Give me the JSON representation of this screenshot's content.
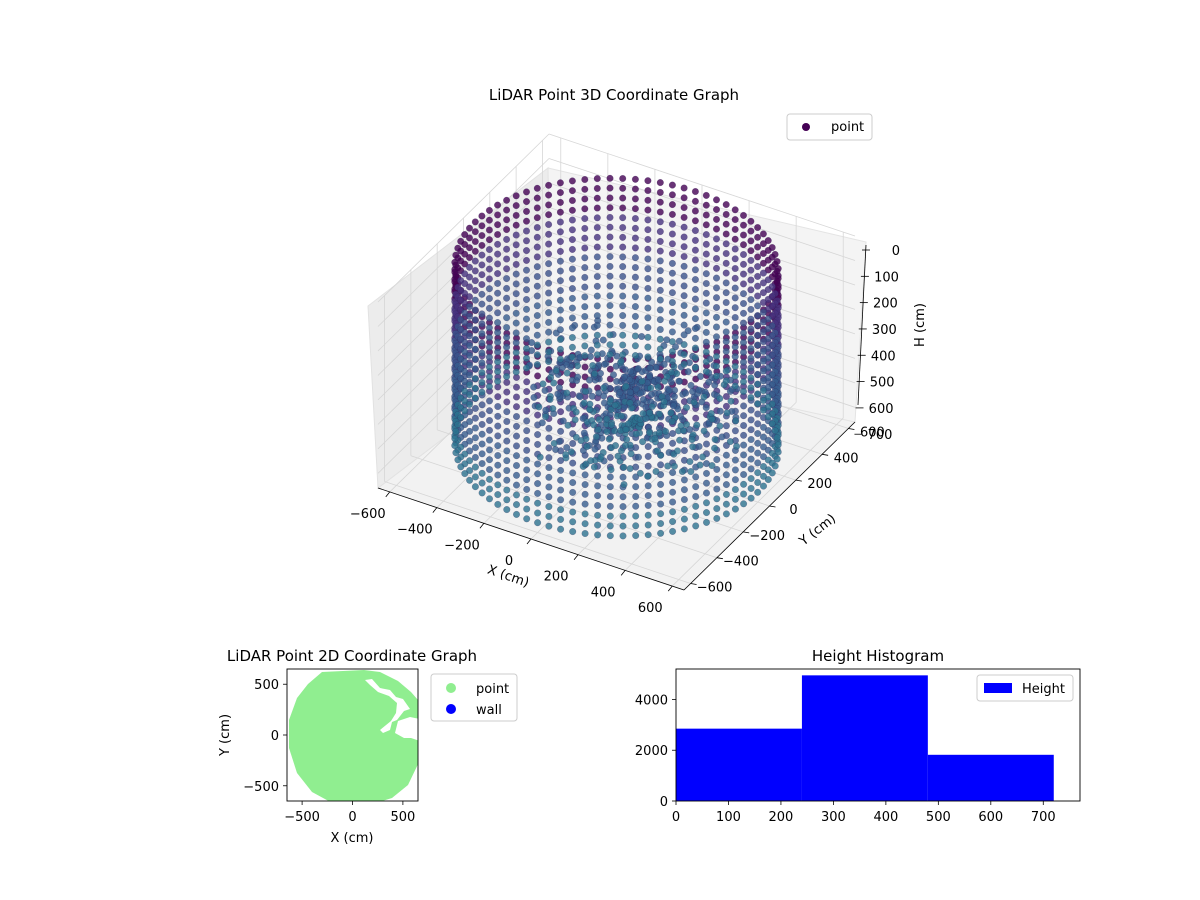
{
  "chart_data": [
    {
      "type": "scatter",
      "projection": "3d",
      "title": "LiDAR Point 3D Coordinate Graph",
      "xlabel": "X (cm)",
      "ylabel": "Y (cm)",
      "zlabel": "H (cm)",
      "xlim": [
        -650,
        650
      ],
      "ylim": [
        -650,
        650
      ],
      "zlim": [
        760,
        0
      ],
      "xticks": [
        "−600",
        "−400",
        "−200",
        "0",
        "200",
        "400",
        "600"
      ],
      "yticks": [
        "−600",
        "−400",
        "−200",
        "0",
        "200",
        "400",
        "600"
      ],
      "zticks": [
        "0",
        "100",
        "200",
        "300",
        "400",
        "500",
        "600",
        "700"
      ],
      "zaxis_inverted": true,
      "colormap": "viridis",
      "legend": [
        {
          "label": "point",
          "color": "#440154"
        }
      ],
      "legend_position": "upper-right",
      "grid": true,
      "series": [
        {
          "name": "point",
          "shape": "ring wall with interior clutter",
          "wall_radius": 600,
          "height_range": [
            0,
            720
          ]
        }
      ]
    },
    {
      "type": "scatter",
      "title": "LiDAR Point 2D Coordinate Graph",
      "xlabel": "X (cm)",
      "ylabel": "Y (cm)",
      "xlim": [
        -650,
        650
      ],
      "ylim": [
        -650,
        650
      ],
      "xticks": [
        "−500",
        "0",
        "500"
      ],
      "yticks": [
        "500",
        "0",
        "−500"
      ],
      "legend": [
        {
          "label": "point",
          "color": "#90ee90"
        },
        {
          "label": "wall",
          "color": "#0000ff"
        }
      ],
      "legend_position": "outside-right",
      "grid": false
    },
    {
      "type": "bar",
      "title": "Height Histogram",
      "xlabel": "",
      "ylabel": "",
      "bins": [
        [
          0,
          240
        ],
        [
          240,
          480
        ],
        [
          480,
          720
        ]
      ],
      "values": [
        2850,
        4950,
        1820
      ],
      "xlim": [
        0,
        770
      ],
      "ylim": [
        0,
        5200
      ],
      "xticks": [
        "0",
        "100",
        "200",
        "300",
        "400",
        "500",
        "600",
        "700"
      ],
      "yticks": [
        "0",
        "2000",
        "4000"
      ],
      "color": "#0000ff",
      "legend": [
        {
          "label": "Height",
          "color": "#0000ff"
        }
      ],
      "legend_position": "upper-right",
      "grid": false
    }
  ]
}
